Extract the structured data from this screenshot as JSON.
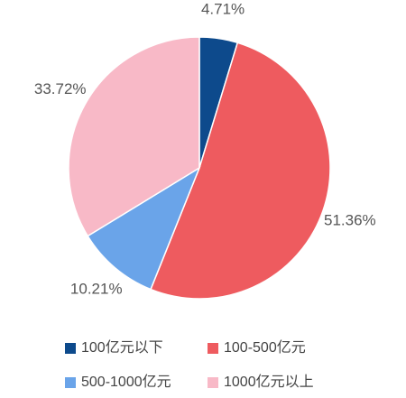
{
  "chart_data": {
    "type": "pie",
    "categories": [
      "100亿元以下",
      "100-500亿元",
      "500-1000亿元",
      "1000亿元以上"
    ],
    "values": [
      4.71,
      51.36,
      10.21,
      33.72
    ],
    "value_labels": [
      "4.71%",
      "51.36%",
      "10.21%",
      "33.72%"
    ],
    "colors": [
      "#0d4a8c",
      "#ee5b5f",
      "#6aa4e9",
      "#f8b9c7"
    ],
    "legend": "bottom"
  }
}
